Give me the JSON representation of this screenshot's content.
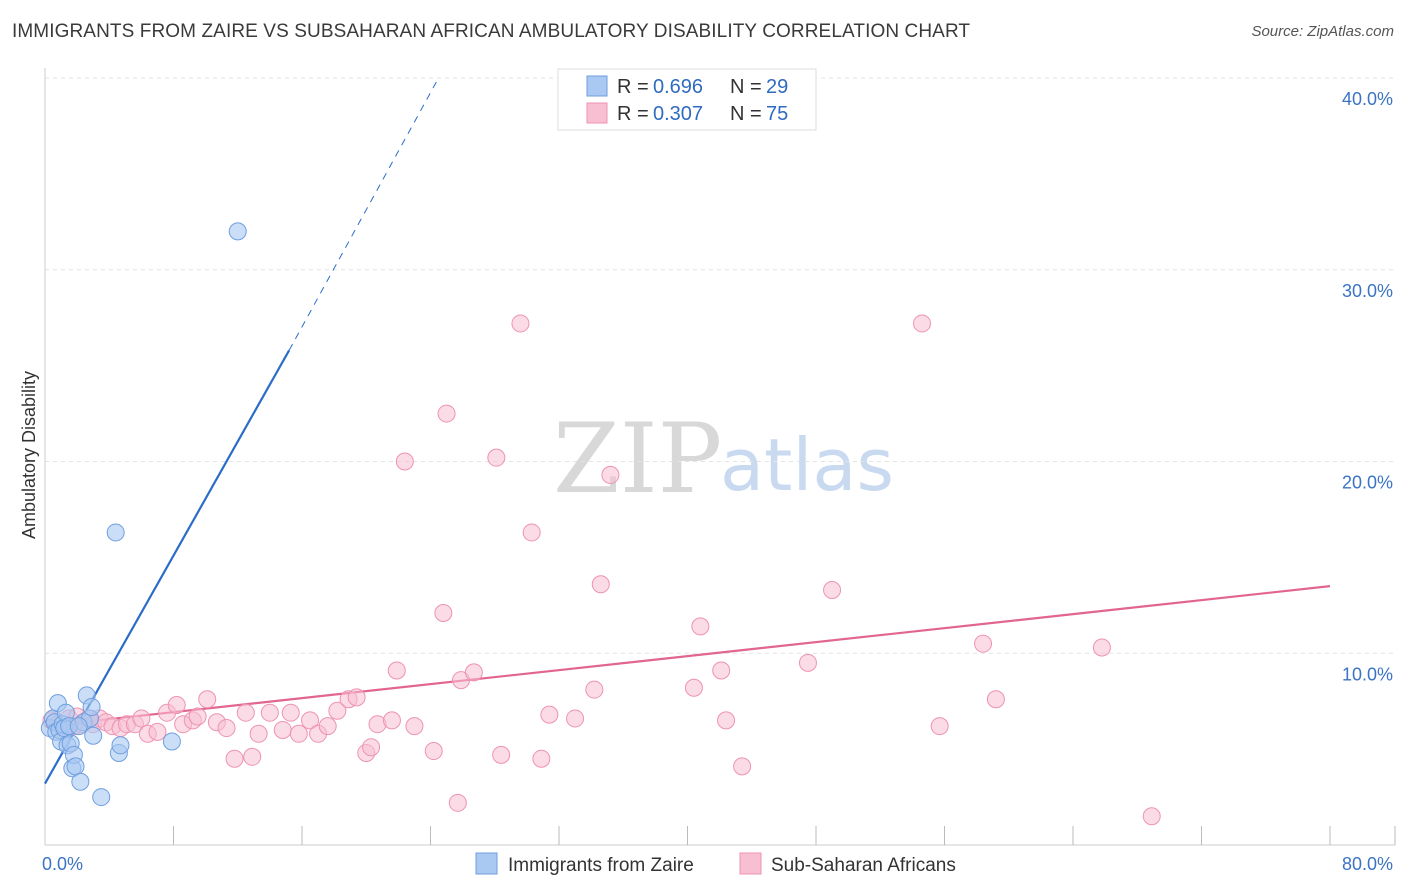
{
  "header": {
    "title": "IMMIGRANTS FROM ZAIRE VS SUBSAHARAN AFRICAN AMBULATORY DISABILITY CORRELATION CHART",
    "source": "Source: ZipAtlas.com"
  },
  "watermark": {
    "zip": "ZIP",
    "atlas": "atlas"
  },
  "legend": {
    "series1": {
      "r_label": "R =",
      "r_value": "0.696",
      "n_label": "N =",
      "n_value": "29"
    },
    "series2": {
      "r_label": "R =",
      "r_value": "0.307",
      "n_label": "N =",
      "n_value": "75"
    }
  },
  "bottom_legend": {
    "series1": "Immigrants from Zaire",
    "series2": "Sub-Saharan Africans"
  },
  "colors": {
    "series1_fill": "#a9c8f2",
    "series1_stroke": "#6f9fdf",
    "series1_line": "#2a6dc9",
    "series2_fill": "#f7bfd1",
    "series2_stroke": "#ee93b1",
    "series2_line": "#e2658f",
    "grid": "#e3e3e3",
    "axis_label": "#3b73c4"
  },
  "chart_data": {
    "type": "scatter",
    "title": "IMMIGRANTS FROM ZAIRE VS SUBSAHARAN AFRICAN AMBULATORY DISABILITY CORRELATION CHART",
    "xlabel": "",
    "ylabel": "Ambulatory Disability",
    "xlim": [
      0,
      80
    ],
    "ylim": [
      0,
      40
    ],
    "x_tick_labels": [
      "0.0%",
      "80.0%"
    ],
    "y_tick_labels": [
      "10.0%",
      "20.0%",
      "30.0%",
      "40.0%"
    ],
    "y_ticks": [
      10,
      20,
      30,
      40
    ],
    "x_minor_ticks": [
      8,
      16,
      24,
      32,
      40,
      48,
      56,
      64,
      72,
      80
    ],
    "grid": true,
    "series": [
      {
        "name": "Immigrants from Zaire",
        "R": 0.696,
        "N": 29,
        "trend": {
          "x1": 0,
          "y1": 3.2,
          "x2": 15.2,
          "y2": 25.8,
          "dashed_to_x": 24.5,
          "dashed_to_y": 40.0
        },
        "points": [
          [
            0.3,
            6.1
          ],
          [
            0.5,
            6.6
          ],
          [
            0.6,
            6.4
          ],
          [
            0.7,
            5.9
          ],
          [
            0.8,
            7.4
          ],
          [
            0.9,
            6.0
          ],
          [
            1.0,
            5.4
          ],
          [
            1.1,
            6.3
          ],
          [
            1.2,
            6.1
          ],
          [
            1.3,
            6.9
          ],
          [
            1.4,
            5.2
          ],
          [
            1.5,
            6.2
          ],
          [
            1.6,
            5.3
          ],
          [
            1.7,
            4.0
          ],
          [
            1.8,
            4.7
          ],
          [
            1.9,
            4.1
          ],
          [
            2.2,
            3.3
          ],
          [
            2.4,
            6.4
          ],
          [
            2.6,
            7.8
          ],
          [
            2.8,
            6.6
          ],
          [
            2.9,
            7.2
          ],
          [
            3.0,
            5.7
          ],
          [
            3.5,
            2.5
          ],
          [
            4.4,
            16.3
          ],
          [
            4.6,
            4.8
          ],
          [
            4.7,
            5.2
          ],
          [
            7.9,
            5.4
          ],
          [
            12.0,
            32.0
          ],
          [
            2.1,
            6.2
          ]
        ]
      },
      {
        "name": "Sub-Saharan Africans",
        "R": 0.307,
        "N": 75,
        "trend": {
          "x1": 0,
          "y1": 6.2,
          "x2": 80,
          "y2": 13.5
        },
        "points": [
          [
            0.4,
            6.5
          ],
          [
            0.8,
            6.3
          ],
          [
            1.2,
            6.0
          ],
          [
            1.5,
            6.6
          ],
          [
            1.8,
            6.2
          ],
          [
            2.0,
            6.7
          ],
          [
            2.3,
            6.3
          ],
          [
            2.7,
            6.6
          ],
          [
            3.0,
            6.3
          ],
          [
            3.4,
            6.6
          ],
          [
            3.8,
            6.4
          ],
          [
            4.2,
            6.2
          ],
          [
            4.7,
            6.1
          ],
          [
            5.1,
            6.3
          ],
          [
            5.6,
            6.3
          ],
          [
            6.0,
            6.6
          ],
          [
            6.4,
            5.8
          ],
          [
            7.0,
            5.9
          ],
          [
            7.6,
            6.9
          ],
          [
            8.2,
            7.3
          ],
          [
            8.6,
            6.3
          ],
          [
            9.2,
            6.5
          ],
          [
            9.5,
            6.7
          ],
          [
            10.1,
            7.6
          ],
          [
            10.7,
            6.4
          ],
          [
            11.3,
            6.1
          ],
          [
            11.8,
            4.5
          ],
          [
            12.5,
            6.9
          ],
          [
            12.9,
            4.6
          ],
          [
            13.3,
            5.8
          ],
          [
            14.0,
            6.9
          ],
          [
            14.8,
            6.0
          ],
          [
            15.3,
            6.9
          ],
          [
            15.8,
            5.8
          ],
          [
            16.5,
            6.5
          ],
          [
            17.0,
            5.8
          ],
          [
            17.6,
            6.2
          ],
          [
            18.2,
            7.0
          ],
          [
            18.9,
            7.6
          ],
          [
            19.4,
            7.7
          ],
          [
            20.0,
            4.8
          ],
          [
            20.3,
            5.1
          ],
          [
            20.7,
            6.3
          ],
          [
            21.6,
            6.5
          ],
          [
            21.9,
            9.1
          ],
          [
            22.4,
            20.0
          ],
          [
            23.0,
            6.2
          ],
          [
            24.2,
            4.9
          ],
          [
            24.8,
            12.1
          ],
          [
            25.0,
            22.5
          ],
          [
            25.7,
            2.2
          ],
          [
            25.9,
            8.6
          ],
          [
            26.7,
            9.0
          ],
          [
            28.1,
            20.2
          ],
          [
            28.4,
            4.7
          ],
          [
            29.6,
            27.2
          ],
          [
            30.3,
            16.3
          ],
          [
            30.9,
            4.5
          ],
          [
            31.4,
            6.8
          ],
          [
            33.0,
            6.6
          ],
          [
            34.2,
            8.1
          ],
          [
            34.6,
            13.6
          ],
          [
            35.2,
            19.3
          ],
          [
            40.4,
            8.2
          ],
          [
            40.8,
            11.4
          ],
          [
            42.1,
            9.1
          ],
          [
            42.4,
            6.5
          ],
          [
            43.4,
            4.1
          ],
          [
            47.5,
            9.5
          ],
          [
            49.0,
            13.3
          ],
          [
            54.6,
            27.2
          ],
          [
            55.7,
            6.2
          ],
          [
            58.4,
            10.5
          ],
          [
            59.2,
            7.6
          ],
          [
            65.8,
            10.3
          ],
          [
            68.9,
            1.5
          ]
        ]
      }
    ]
  }
}
